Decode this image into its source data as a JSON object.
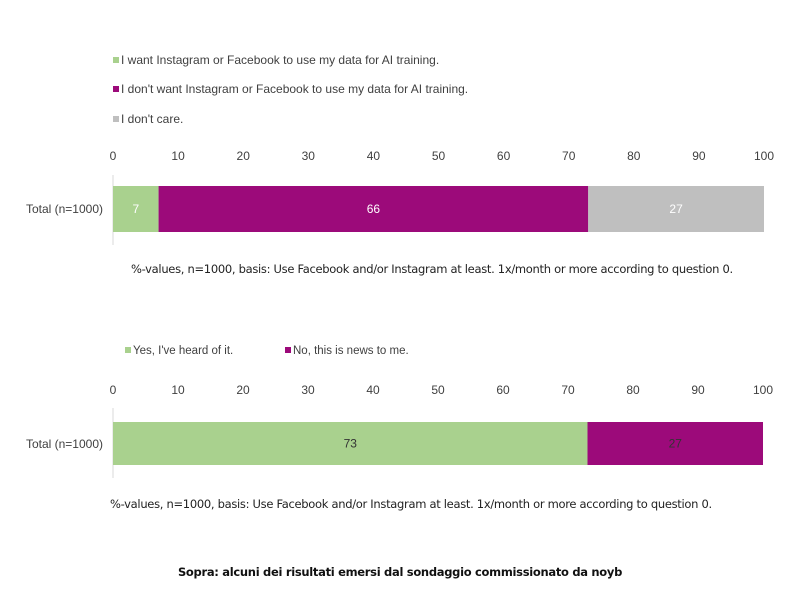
{
  "chart_data": [
    {
      "type": "bar",
      "orientation": "horizontal-stacked",
      "categories": [
        "Total (n=1000)"
      ],
      "series": [
        {
          "name": "I want Instagram or Facebook to use my data for AI training.",
          "values": [
            7
          ],
          "color": "#a9d18e",
          "label_color": "#ffffff"
        },
        {
          "name": "I don't want Instagram or Facebook to use my data for AI training.",
          "values": [
            66
          ],
          "color": "#9c0a7a",
          "label_color": "#ffffff"
        },
        {
          "name": "I don't care.",
          "values": [
            27
          ],
          "color": "#bfbfbf",
          "label_color": "#ffffff"
        }
      ],
      "xlim": [
        0,
        100
      ],
      "xticks": [
        0,
        10,
        20,
        30,
        40,
        50,
        60,
        70,
        80,
        90,
        100
      ],
      "legend": "top-left-vertical",
      "note": "%-values, n=1000, basis: Use Facebook and/or Instagram at least. 1x/month or more according to question 0."
    },
    {
      "type": "bar",
      "orientation": "horizontal-stacked",
      "categories": [
        "Total (n=1000)"
      ],
      "series": [
        {
          "name": "Yes, I've heard of it.",
          "values": [
            73
          ],
          "color": "#a9d18e",
          "label_color": "#333333"
        },
        {
          "name": "No, this is news to me.",
          "values": [
            27
          ],
          "color": "#9c0a7a",
          "label_color": "#333333"
        }
      ],
      "xlim": [
        0,
        100
      ],
      "xticks": [
        0,
        10,
        20,
        30,
        40,
        50,
        60,
        70,
        80,
        90,
        100
      ],
      "legend": "top-horizontal",
      "note": "%-values, n=1000, basis: Use Facebook and/or Instagram at least. 1x/month or more according to question 0."
    }
  ],
  "caption": "Sopra: alcuni dei risultati emersi dal sondaggio commissionato da noyb"
}
